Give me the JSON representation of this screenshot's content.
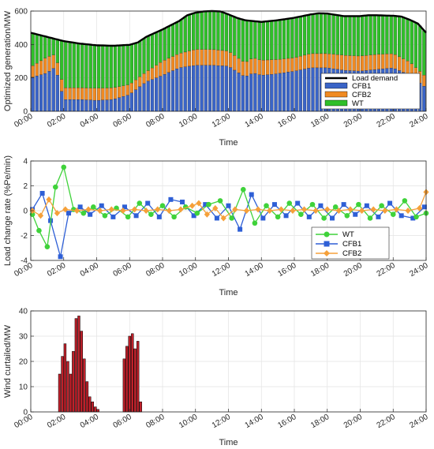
{
  "chart_data": [
    {
      "type": "bar",
      "stacked": true,
      "xlabel": "Time",
      "ylabel": "Optimized generation/MW",
      "ylim": [
        0,
        600
      ],
      "yticks": [
        0,
        200,
        400,
        600
      ],
      "xticks": [
        "00:00",
        "02:00",
        "04:00",
        "06:00",
        "08:00",
        "10:00",
        "12:00",
        "14:00",
        "16:00",
        "18:00",
        "20:00",
        "22:00",
        "24:00"
      ],
      "grid": true,
      "legend_position": "bottom-right",
      "colors": {
        "CFB1": "#3a64c7",
        "CFB2": "#f08a22",
        "WT": "#2fbf29",
        "Load demand": "#000000"
      },
      "line": {
        "name": "Load demand",
        "points": [
          [
            0,
            470
          ],
          [
            1,
            445
          ],
          [
            2,
            420
          ],
          [
            3,
            405
          ],
          [
            4,
            395
          ],
          [
            5,
            392
          ],
          [
            6,
            398
          ],
          [
            6.5,
            412
          ],
          [
            7,
            445
          ],
          [
            8,
            490
          ],
          [
            9,
            540
          ],
          [
            9.5,
            575
          ],
          [
            10,
            590
          ],
          [
            10.5,
            598
          ],
          [
            11,
            600
          ],
          [
            11.5,
            598
          ],
          [
            12,
            580
          ],
          [
            12.5,
            560
          ],
          [
            13,
            545
          ],
          [
            14,
            535
          ],
          [
            15,
            545
          ],
          [
            16,
            560
          ],
          [
            17,
            580
          ],
          [
            17.5,
            587
          ],
          [
            18,
            585
          ],
          [
            19,
            570
          ],
          [
            20,
            570
          ],
          [
            20.5,
            575
          ],
          [
            21,
            575
          ],
          [
            21.5,
            573
          ],
          [
            22,
            572
          ],
          [
            22.5,
            567
          ],
          [
            23,
            548
          ],
          [
            23.5,
            525
          ],
          [
            24,
            470
          ]
        ]
      },
      "series_points": [
        {
          "name": "CFB1",
          "points": [
            [
              0,
              200
            ],
            [
              1,
              230
            ],
            [
              1.5,
              265
            ],
            [
              2,
              70
            ],
            [
              3,
              70
            ],
            [
              4,
              65
            ],
            [
              5,
              70
            ],
            [
              6,
              100
            ],
            [
              7,
              175
            ],
            [
              8,
              215
            ],
            [
              9,
              260
            ],
            [
              10,
              275
            ],
            [
              11,
              275
            ],
            [
              12,
              270
            ],
            [
              13,
              205
            ],
            [
              13.5,
              230
            ],
            [
              14,
              215
            ],
            [
              15,
              225
            ],
            [
              16,
              240
            ],
            [
              17,
              260
            ],
            [
              18,
              260
            ],
            [
              19,
              245
            ],
            [
              20,
              240
            ],
            [
              21,
              250
            ],
            [
              22,
              260
            ],
            [
              23,
              215
            ],
            [
              24,
              140
            ]
          ]
        },
        {
          "name": "CFB2",
          "points": [
            [
              0,
              265
            ],
            [
              1,
              325
            ],
            [
              1.5,
              340
            ],
            [
              2,
              140
            ],
            [
              3,
              140
            ],
            [
              4,
              138
            ],
            [
              5,
              140
            ],
            [
              6,
              160
            ],
            [
              7,
              235
            ],
            [
              8,
              300
            ],
            [
              9,
              345
            ],
            [
              10,
              370
            ],
            [
              11,
              370
            ],
            [
              12,
              360
            ],
            [
              13,
              290
            ],
            [
              13.5,
              320
            ],
            [
              14,
              305
            ],
            [
              15,
              310
            ],
            [
              16,
              320
            ],
            [
              17,
              345
            ],
            [
              18,
              345
            ],
            [
              19,
              335
            ],
            [
              20,
              330
            ],
            [
              21,
              340
            ],
            [
              22,
              345
            ],
            [
              23,
              295
            ],
            [
              24,
              205
            ]
          ]
        },
        {
          "name": "WT",
          "points": [
            [
              0,
              470
            ],
            [
              1,
              445
            ],
            [
              2,
              420
            ],
            [
              3,
              405
            ],
            [
              4,
              395
            ],
            [
              5,
              392
            ],
            [
              6,
              398
            ],
            [
              6.5,
              412
            ],
            [
              7,
              445
            ],
            [
              8,
              490
            ],
            [
              9,
              540
            ],
            [
              9.5,
              575
            ],
            [
              10,
              590
            ],
            [
              10.5,
              598
            ],
            [
              11,
              600
            ],
            [
              11.5,
              598
            ],
            [
              12,
              580
            ],
            [
              12.5,
              560
            ],
            [
              13,
              545
            ],
            [
              14,
              535
            ],
            [
              15,
              545
            ],
            [
              16,
              560
            ],
            [
              17,
              580
            ],
            [
              17.5,
              587
            ],
            [
              18,
              585
            ],
            [
              19,
              570
            ],
            [
              20,
              570
            ],
            [
              20.5,
              575
            ],
            [
              21,
              575
            ],
            [
              21.5,
              573
            ],
            [
              22,
              572
            ],
            [
              22.5,
              567
            ],
            [
              23,
              548
            ],
            [
              23.5,
              525
            ],
            [
              24,
              470
            ]
          ]
        }
      ],
      "legend": [
        "Load demand",
        "CFB1",
        "CFB2",
        "WT"
      ]
    },
    {
      "type": "line",
      "xlabel": "Time",
      "ylabel": "Load change rate (%Pe/min)",
      "ylim": [
        -4,
        4
      ],
      "yticks": [
        -4,
        -2,
        0,
        2,
        4
      ],
      "xticks": [
        "00:00",
        "02:00",
        "04:00",
        "06:00",
        "08:00",
        "10:00",
        "12:00",
        "14:00",
        "16:00",
        "18:00",
        "20:00",
        "22:00",
        "24:00"
      ],
      "grid": true,
      "legend_position": "bottom-right",
      "series": [
        {
          "name": "WT",
          "color": "#3fd23a",
          "marker": "circle",
          "x": [
            0.1,
            0.5,
            1.0,
            1.5,
            2.0,
            2.6,
            3.2,
            3.8,
            4.5,
            5.2,
            5.9,
            6.6,
            7.3,
            8.0,
            8.7,
            9.4,
            10.1,
            10.8,
            11.5,
            12.2,
            12.9,
            13.6,
            14.3,
            15.0,
            15.7,
            16.4,
            17.1,
            17.8,
            18.5,
            19.2,
            19.9,
            20.6,
            21.3,
            22.0,
            22.7,
            23.4,
            24.0
          ],
          "y": [
            -0.3,
            -1.6,
            -2.9,
            1.9,
            3.5,
            0.1,
            -0.2,
            0.3,
            -0.4,
            0.2,
            -0.5,
            0.6,
            -0.3,
            0.4,
            -0.5,
            0.3,
            -0.2,
            0.5,
            0.8,
            -0.6,
            1.7,
            -1.0,
            0.4,
            -0.5,
            0.6,
            -0.3,
            0.5,
            -0.6,
            0.3,
            -0.4,
            0.5,
            -0.6,
            0.4,
            -0.3,
            0.8,
            -0.5,
            -0.2
          ]
        },
        {
          "name": "CFB1",
          "color": "#2e5fd6",
          "marker": "square",
          "x": [
            0.1,
            0.7,
            1.2,
            1.8,
            2.3,
            3.0,
            3.6,
            4.3,
            5.0,
            5.7,
            6.4,
            7.1,
            7.8,
            8.5,
            9.2,
            9.9,
            10.6,
            11.3,
            12.0,
            12.7,
            13.4,
            14.1,
            14.8,
            15.5,
            16.2,
            16.9,
            17.6,
            18.3,
            19.0,
            19.7,
            20.4,
            21.1,
            21.8,
            22.5,
            23.2,
            23.9
          ],
          "y": [
            0.1,
            1.4,
            -0.8,
            -3.7,
            -0.2,
            0.3,
            -0.3,
            0.4,
            -0.5,
            0.3,
            -0.4,
            0.6,
            -0.5,
            0.9,
            0.7,
            -0.4,
            0.5,
            -0.6,
            0.4,
            -1.5,
            1.3,
            -0.6,
            0.5,
            -0.4,
            0.6,
            -0.5,
            0.4,
            -0.6,
            0.5,
            -0.3,
            0.4,
            -0.5,
            0.6,
            -0.4,
            -0.6,
            0.3
          ]
        },
        {
          "name": "CFB2",
          "color": "#f5a03a",
          "marker": "diamond",
          "x": [
            0.1,
            0.6,
            1.1,
            1.6,
            2.1,
            2.8,
            3.5,
            4.2,
            4.9,
            5.6,
            6.3,
            7.0,
            7.7,
            8.4,
            9.1,
            9.8,
            10.2,
            10.7,
            11.2,
            11.7,
            12.4,
            13.1,
            13.8,
            14.5,
            15.2,
            15.9,
            16.6,
            17.3,
            18.0,
            18.7,
            19.4,
            20.1,
            20.8,
            21.5,
            22.2,
            22.9,
            23.6,
            24.0
          ],
          "y": [
            0.0,
            -0.4,
            0.9,
            -0.2,
            0.1,
            0.0,
            0.1,
            0.0,
            0.1,
            0.0,
            0.1,
            0.0,
            0.1,
            0.0,
            0.1,
            0.4,
            0.6,
            -0.3,
            0.2,
            -0.6,
            0.1,
            0.0,
            0.1,
            0.0,
            0.1,
            0.0,
            0.1,
            0.0,
            0.1,
            0.0,
            0.1,
            0.0,
            0.1,
            0.0,
            0.1,
            0.0,
            0.2,
            1.5
          ]
        }
      ],
      "legend": [
        "WT",
        "CFB1",
        "CFB2"
      ]
    },
    {
      "type": "bar",
      "xlabel": "Time",
      "ylabel": "Wind curtailed/MW",
      "ylim": [
        0,
        40
      ],
      "yticks": [
        0,
        10,
        20,
        30,
        40
      ],
      "xticks": [
        "00:00",
        "02:00",
        "04:00",
        "06:00",
        "08:00",
        "10:00",
        "12:00",
        "14:00",
        "16:00",
        "18:00",
        "20:00",
        "22:00",
        "24:00"
      ],
      "grid": true,
      "bar_color": "#c0202a",
      "x": [
        1.75,
        1.92,
        2.08,
        2.25,
        2.42,
        2.58,
        2.75,
        2.92,
        3.08,
        3.25,
        3.42,
        3.58,
        3.75,
        3.92,
        4.08,
        5.67,
        5.83,
        6.0,
        6.17,
        6.33,
        6.5,
        6.67
      ],
      "values": [
        15,
        22,
        27,
        20,
        15,
        24,
        37,
        38,
        32,
        21,
        12,
        6,
        4,
        2,
        1,
        21,
        26,
        30,
        31,
        25,
        28,
        4
      ]
    }
  ]
}
